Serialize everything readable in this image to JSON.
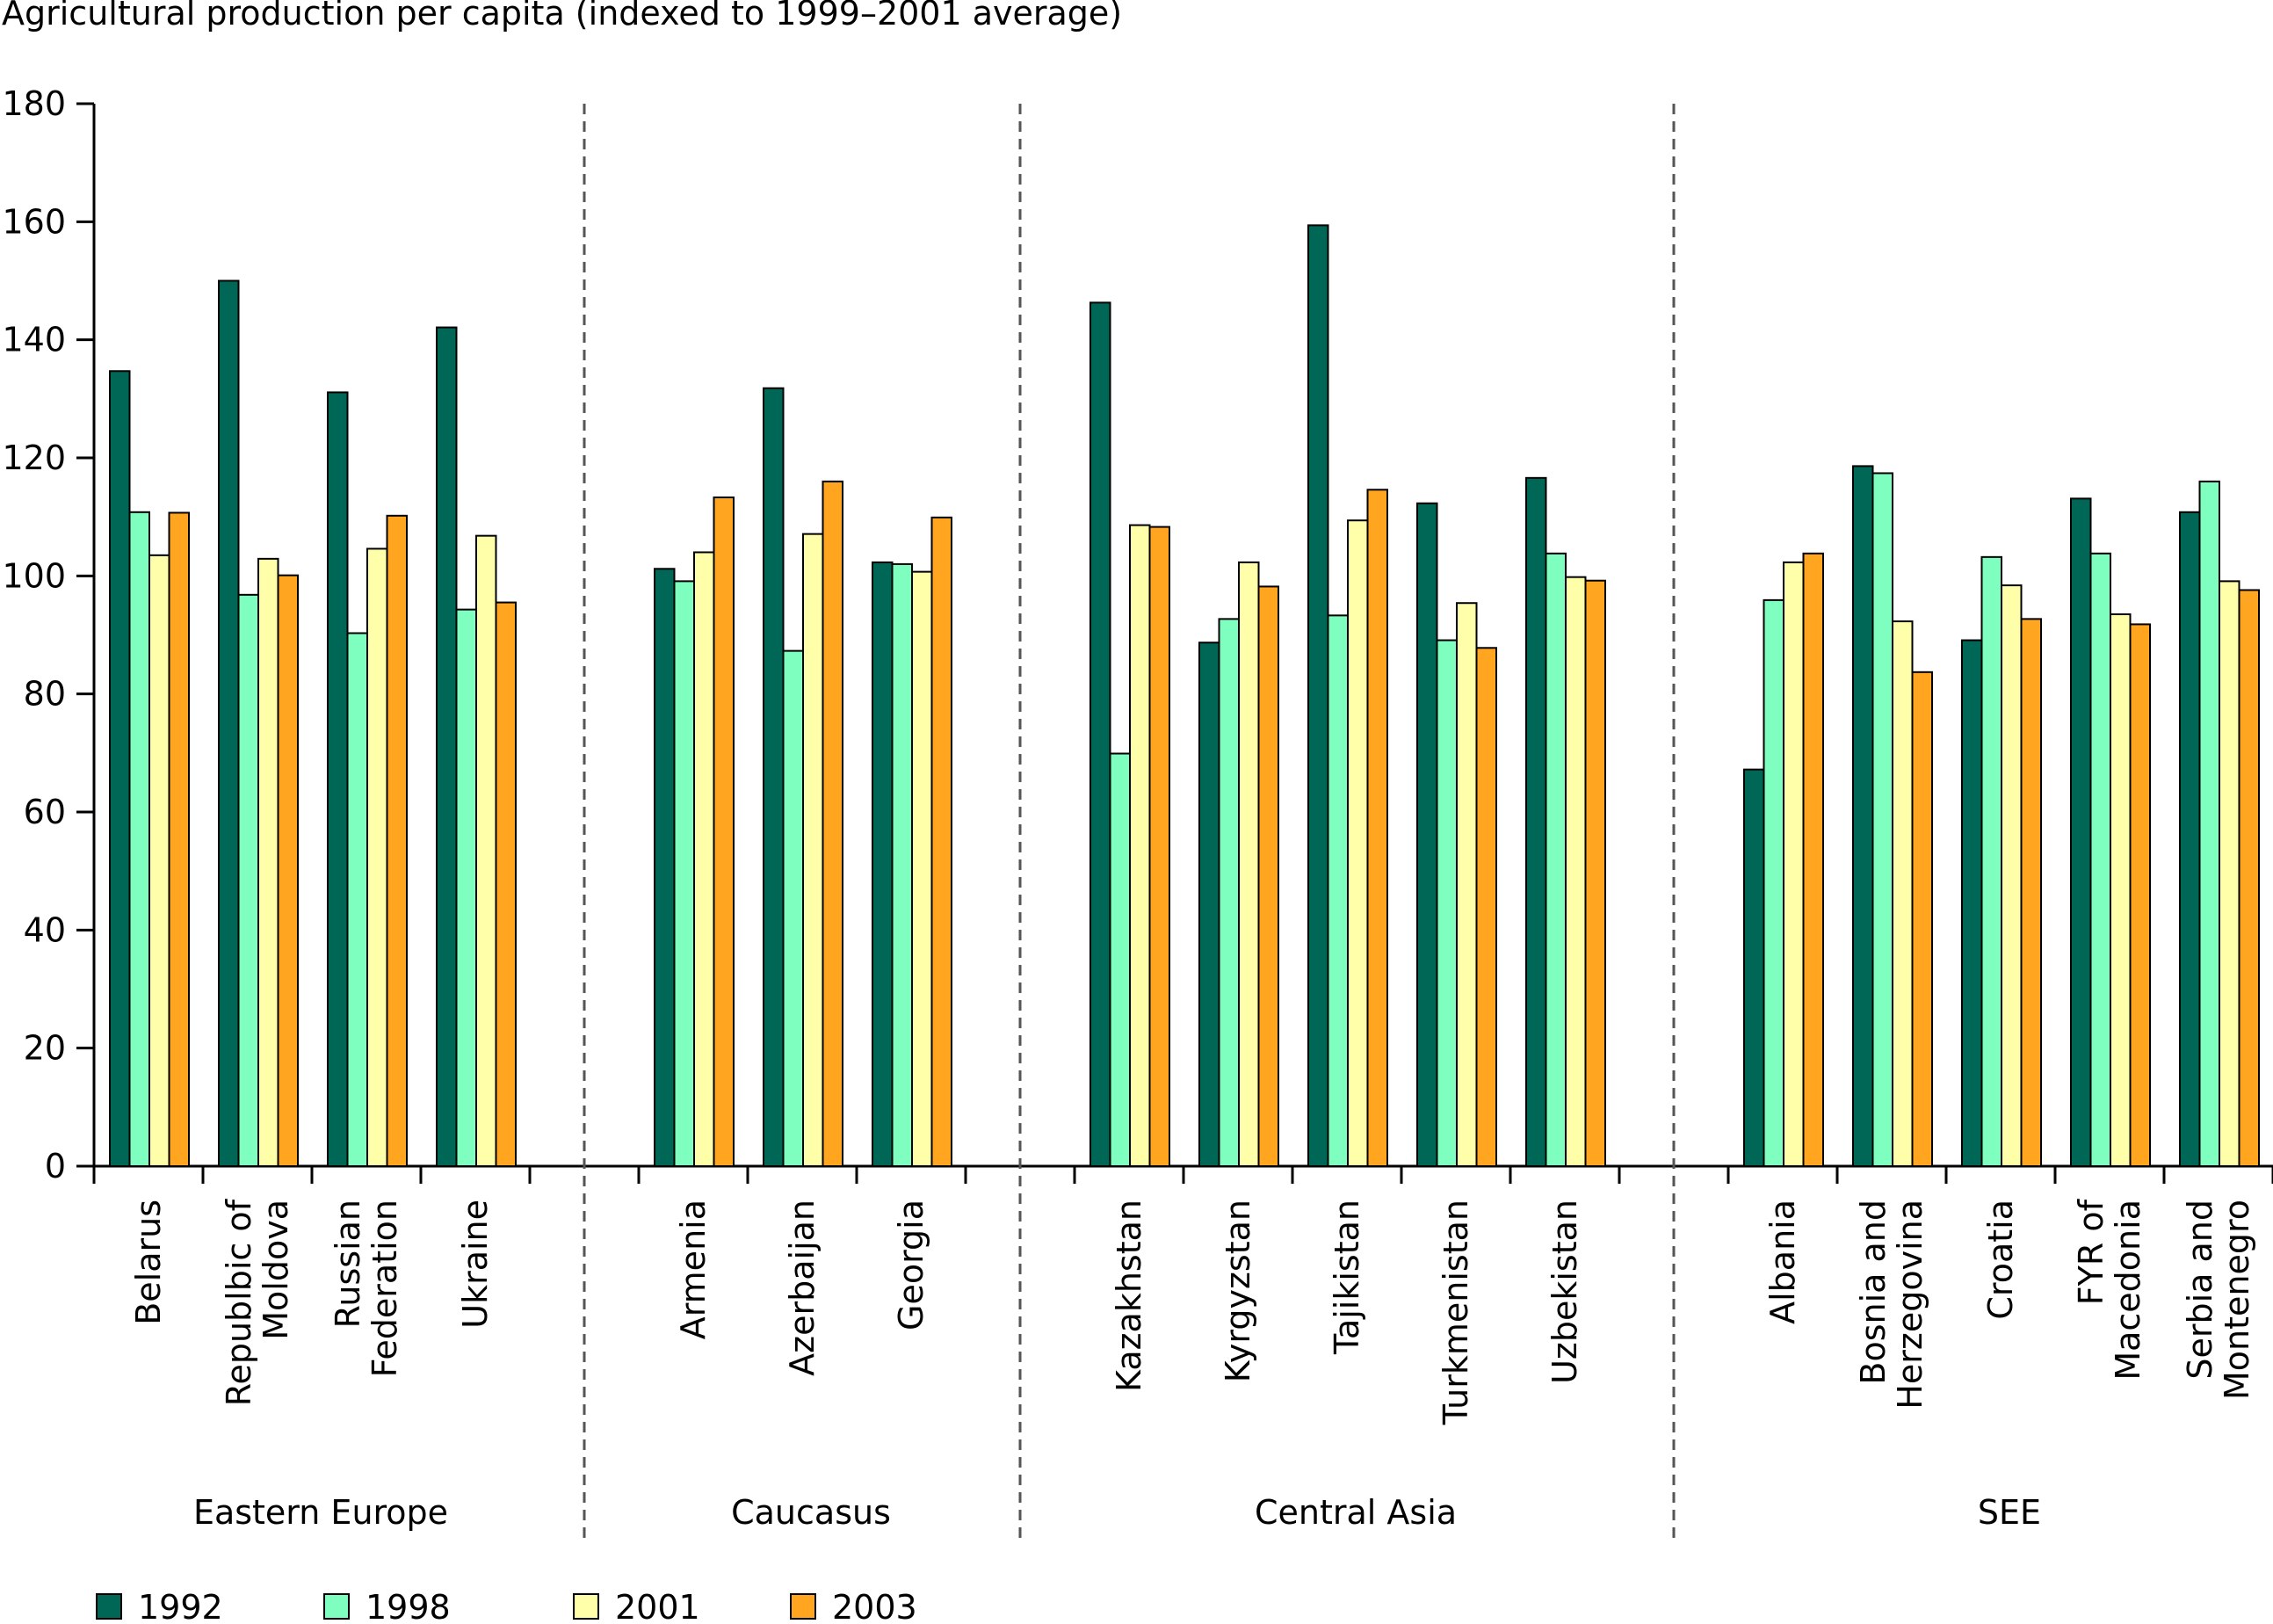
{
  "chart_data": {
    "type": "bar",
    "title": "Agricultural production per capita (indexed to 1999–2001 average)",
    "ylim": [
      0,
      180
    ],
    "yticks": [
      0,
      20,
      40,
      60,
      80,
      100,
      120,
      140,
      160,
      180
    ],
    "grid": false,
    "legend_position": "bottom-left",
    "series": [
      {
        "name": "1992",
        "color": "#006655"
      },
      {
        "name": "1998",
        "color": "#7fffbf"
      },
      {
        "name": "2001",
        "color": "#ffffaa"
      },
      {
        "name": "2003",
        "color": "#ffa520"
      }
    ],
    "groups": [
      {
        "name": "Eastern Europe",
        "categories": [
          {
            "label": [
              "Belarus"
            ],
            "values": [
              134.7,
              110.8,
              103.5,
              110.7
            ]
          },
          {
            "label": [
              "Republbic of",
              "Moldova"
            ],
            "values": [
              150.0,
              96.8,
              102.9,
              100.1
            ]
          },
          {
            "label": [
              "Russian",
              "Federation"
            ],
            "values": [
              131.1,
              90.3,
              104.6,
              110.2
            ]
          },
          {
            "label": [
              "Ukraine"
            ],
            "values": [
              142.1,
              94.3,
              106.8,
              95.5
            ]
          }
        ]
      },
      {
        "name": "Caucasus",
        "categories": [
          {
            "label": [
              "Armenia"
            ],
            "values": [
              101.2,
              99.1,
              104.0,
              113.3
            ]
          },
          {
            "label": [
              "Azerbaijan"
            ],
            "values": [
              131.8,
              87.3,
              107.1,
              116.0
            ]
          },
          {
            "label": [
              "Georgia"
            ],
            "values": [
              102.3,
              102.0,
              100.7,
              109.9
            ]
          }
        ]
      },
      {
        "name": "Central Asia",
        "categories": [
          {
            "label": [
              "Kazakhstan"
            ],
            "values": [
              146.3,
              69.9,
              108.6,
              108.3
            ]
          },
          {
            "label": [
              "Kyrgyzstan"
            ],
            "values": [
              88.7,
              92.7,
              102.3,
              98.2
            ]
          },
          {
            "label": [
              "Tajikistan"
            ],
            "values": [
              159.4,
              93.3,
              109.4,
              114.6
            ]
          },
          {
            "label": [
              "Turkmenistan"
            ],
            "values": [
              112.3,
              89.1,
              95.4,
              87.8
            ]
          },
          {
            "label": [
              "Uzbekistan"
            ],
            "values": [
              116.6,
              103.8,
              99.8,
              99.2
            ]
          }
        ]
      },
      {
        "name": "SEE",
        "categories": [
          {
            "label": [
              "Albania"
            ],
            "values": [
              67.2,
              95.9,
              102.3,
              103.8
            ]
          },
          {
            "label": [
              "Bosnia and",
              "Herzegovina"
            ],
            "values": [
              118.6,
              117.4,
              92.3,
              83.7
            ]
          },
          {
            "label": [
              "Croatia"
            ],
            "values": [
              89.1,
              103.2,
              98.4,
              92.7
            ]
          },
          {
            "label": [
              "FYR of",
              "Macedonia"
            ],
            "values": [
              113.1,
              103.8,
              93.5,
              91.8
            ]
          },
          {
            "label": [
              "Serbia and",
              "Montenegro"
            ],
            "values": [
              110.8,
              116.0,
              99.1,
              97.6
            ]
          }
        ]
      }
    ]
  }
}
